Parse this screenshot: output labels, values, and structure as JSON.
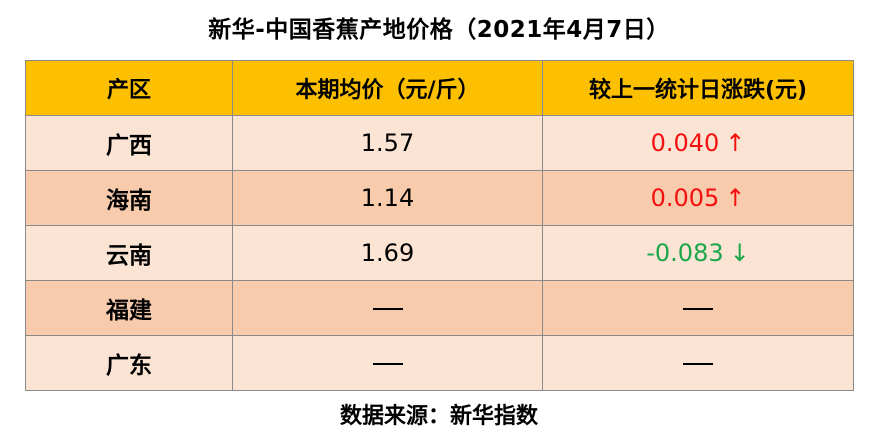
{
  "title": "新华-中国香蕉产地价格（2021年4月7日）",
  "headers": {
    "region": "产区",
    "price": "本期均价（元/斤）",
    "change": "较上一统计日涨跌(元)"
  },
  "rows": [
    {
      "region": "广西",
      "price": "1.57",
      "change": "0.040",
      "arrow": "↑",
      "trend": "up"
    },
    {
      "region": "海南",
      "price": "1.14",
      "change": "0.005",
      "arrow": "↑",
      "trend": "up"
    },
    {
      "region": "云南",
      "price": "1.69",
      "change": "-0.083",
      "arrow": "↓",
      "trend": "down"
    },
    {
      "region": "福建",
      "price": "—",
      "change": "—",
      "arrow": "",
      "trend": "none"
    },
    {
      "region": "广东",
      "price": "—",
      "change": "—",
      "arrow": "",
      "trend": "none"
    }
  ],
  "colors": {
    "header_bg": "#fcc000",
    "row_light": "#fce4d4",
    "row_dark": "#f8cbad",
    "up": "#f51010",
    "down": "#1aa74b"
  },
  "source": "数据来源：新华指数"
}
